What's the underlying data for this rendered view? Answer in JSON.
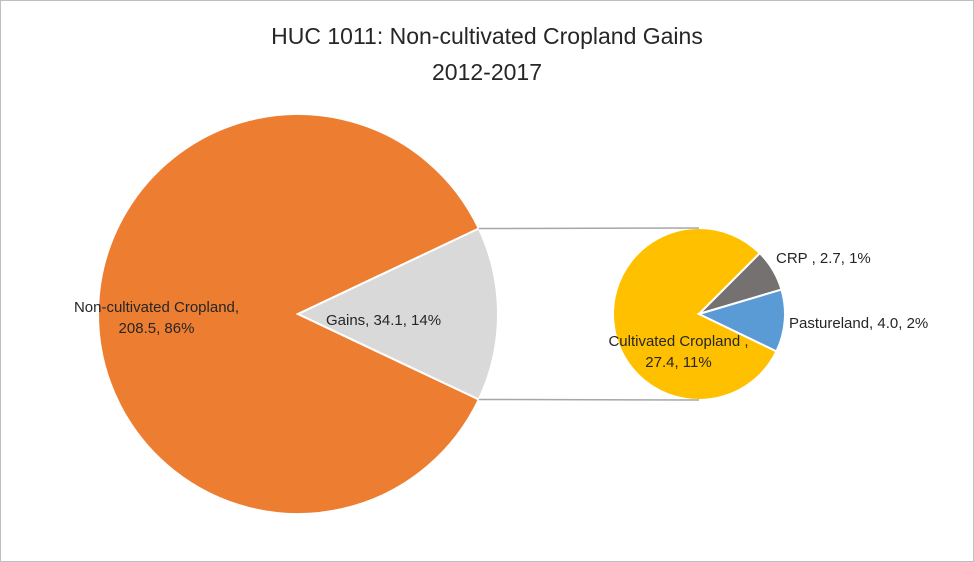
{
  "chart_data": {
    "type": "pie-of-pie",
    "title": "HUC 1011: Non-cultivated Cropland Gains",
    "subtitle": "2012-2017",
    "values": [
      208.5,
      34.1
    ],
    "value_labels": [
      "Non-cultivated Cropland, 208.5, 86%",
      "Gains, 34.1, 14%"
    ],
    "colors": [
      "#ed7d31",
      "#d9d9d9"
    ],
    "secondary": {
      "values": [
        27.4,
        2.7,
        4.0
      ],
      "value_labels": [
        "Cultivated Cropland , 27.4, 11%",
        "CRP , 2.7, 1%",
        "Pastureland, 4.0, 2%"
      ],
      "colors": [
        "#ffc000",
        "#767171",
        "#5b9bd5"
      ]
    }
  }
}
